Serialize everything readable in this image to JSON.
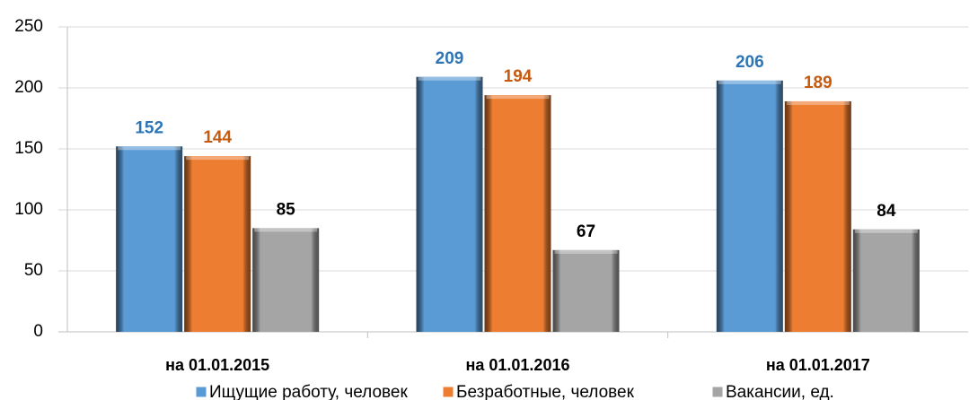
{
  "chart_data": {
    "type": "bar",
    "categories": [
      "на 01.01.2015",
      "на 01.01.2016",
      "на 01.01.2017"
    ],
    "series": [
      {
        "name": "Ищущие работу, человек",
        "color": "#5b9bd5",
        "label_color": "#2e75b6",
        "values": [
          152,
          209,
          206
        ]
      },
      {
        "name": "Безработные, человек",
        "color": "#ed7d31",
        "label_color": "#c55a11",
        "values": [
          144,
          194,
          189
        ]
      },
      {
        "name": "Вакансии, ед.",
        "color": "#a5a5a5",
        "label_color": "#000000",
        "values": [
          85,
          67,
          84
        ]
      }
    ],
    "ylim": [
      0,
      250
    ],
    "yticks": [
      0,
      50,
      100,
      150,
      200,
      250
    ],
    "grid": true,
    "legend": "bottom"
  }
}
